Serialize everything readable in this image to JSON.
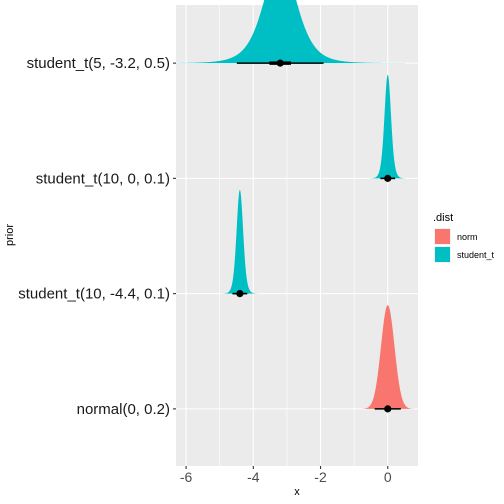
{
  "chart_data": {
    "type": "halfeye",
    "x_label": "x",
    "y_label": "prior",
    "xlim": [
      -6.3,
      0.9
    ],
    "x_ticks": [
      -6,
      -4,
      -2,
      0
    ],
    "x_tick_labels": [
      "-6",
      "-4",
      "-2",
      "0"
    ],
    "categories": [
      "normal(0, 0.2)",
      "student_t(10, -4.4, 0.1)",
      "student_t(10, 0, 0.1)",
      "student_t(5, -3.2, 0.5)"
    ],
    "grid": true,
    "legend": {
      "title": ".dist",
      "position": "right",
      "entries": [
        {
          "label": "norm",
          "color": "#F8766D"
        },
        {
          "label": "student_t",
          "color": "#00BFC4"
        }
      ]
    },
    "series": [
      {
        "category": "normal(0, 0.2)",
        "dist": "norm",
        "df": null,
        "location": 0,
        "scale": 0.2,
        "median": 0,
        "interval_66": [
          -0.09,
          0.09
        ],
        "interval_95": [
          -0.39,
          0.39
        ]
      },
      {
        "category": "student_t(10, -4.4, 0.1)",
        "dist": "student_t",
        "df": 10,
        "location": -4.4,
        "scale": 0.1,
        "median": -4.4,
        "interval_66": [
          -4.45,
          -4.35
        ],
        "interval_95": [
          -4.62,
          -4.18
        ]
      },
      {
        "category": "student_t(10, 0, 0.1)",
        "dist": "student_t",
        "df": 10,
        "location": 0,
        "scale": 0.1,
        "median": 0,
        "interval_66": [
          -0.05,
          0.05
        ],
        "interval_95": [
          -0.22,
          0.22
        ]
      },
      {
        "category": "student_t(5, -3.2, 0.5)",
        "dist": "student_t",
        "df": 5,
        "location": -3.2,
        "scale": 0.5,
        "median": -3.2,
        "interval_66": [
          -3.52,
          -2.88
        ],
        "interval_95": [
          -4.49,
          -1.91
        ]
      }
    ]
  }
}
